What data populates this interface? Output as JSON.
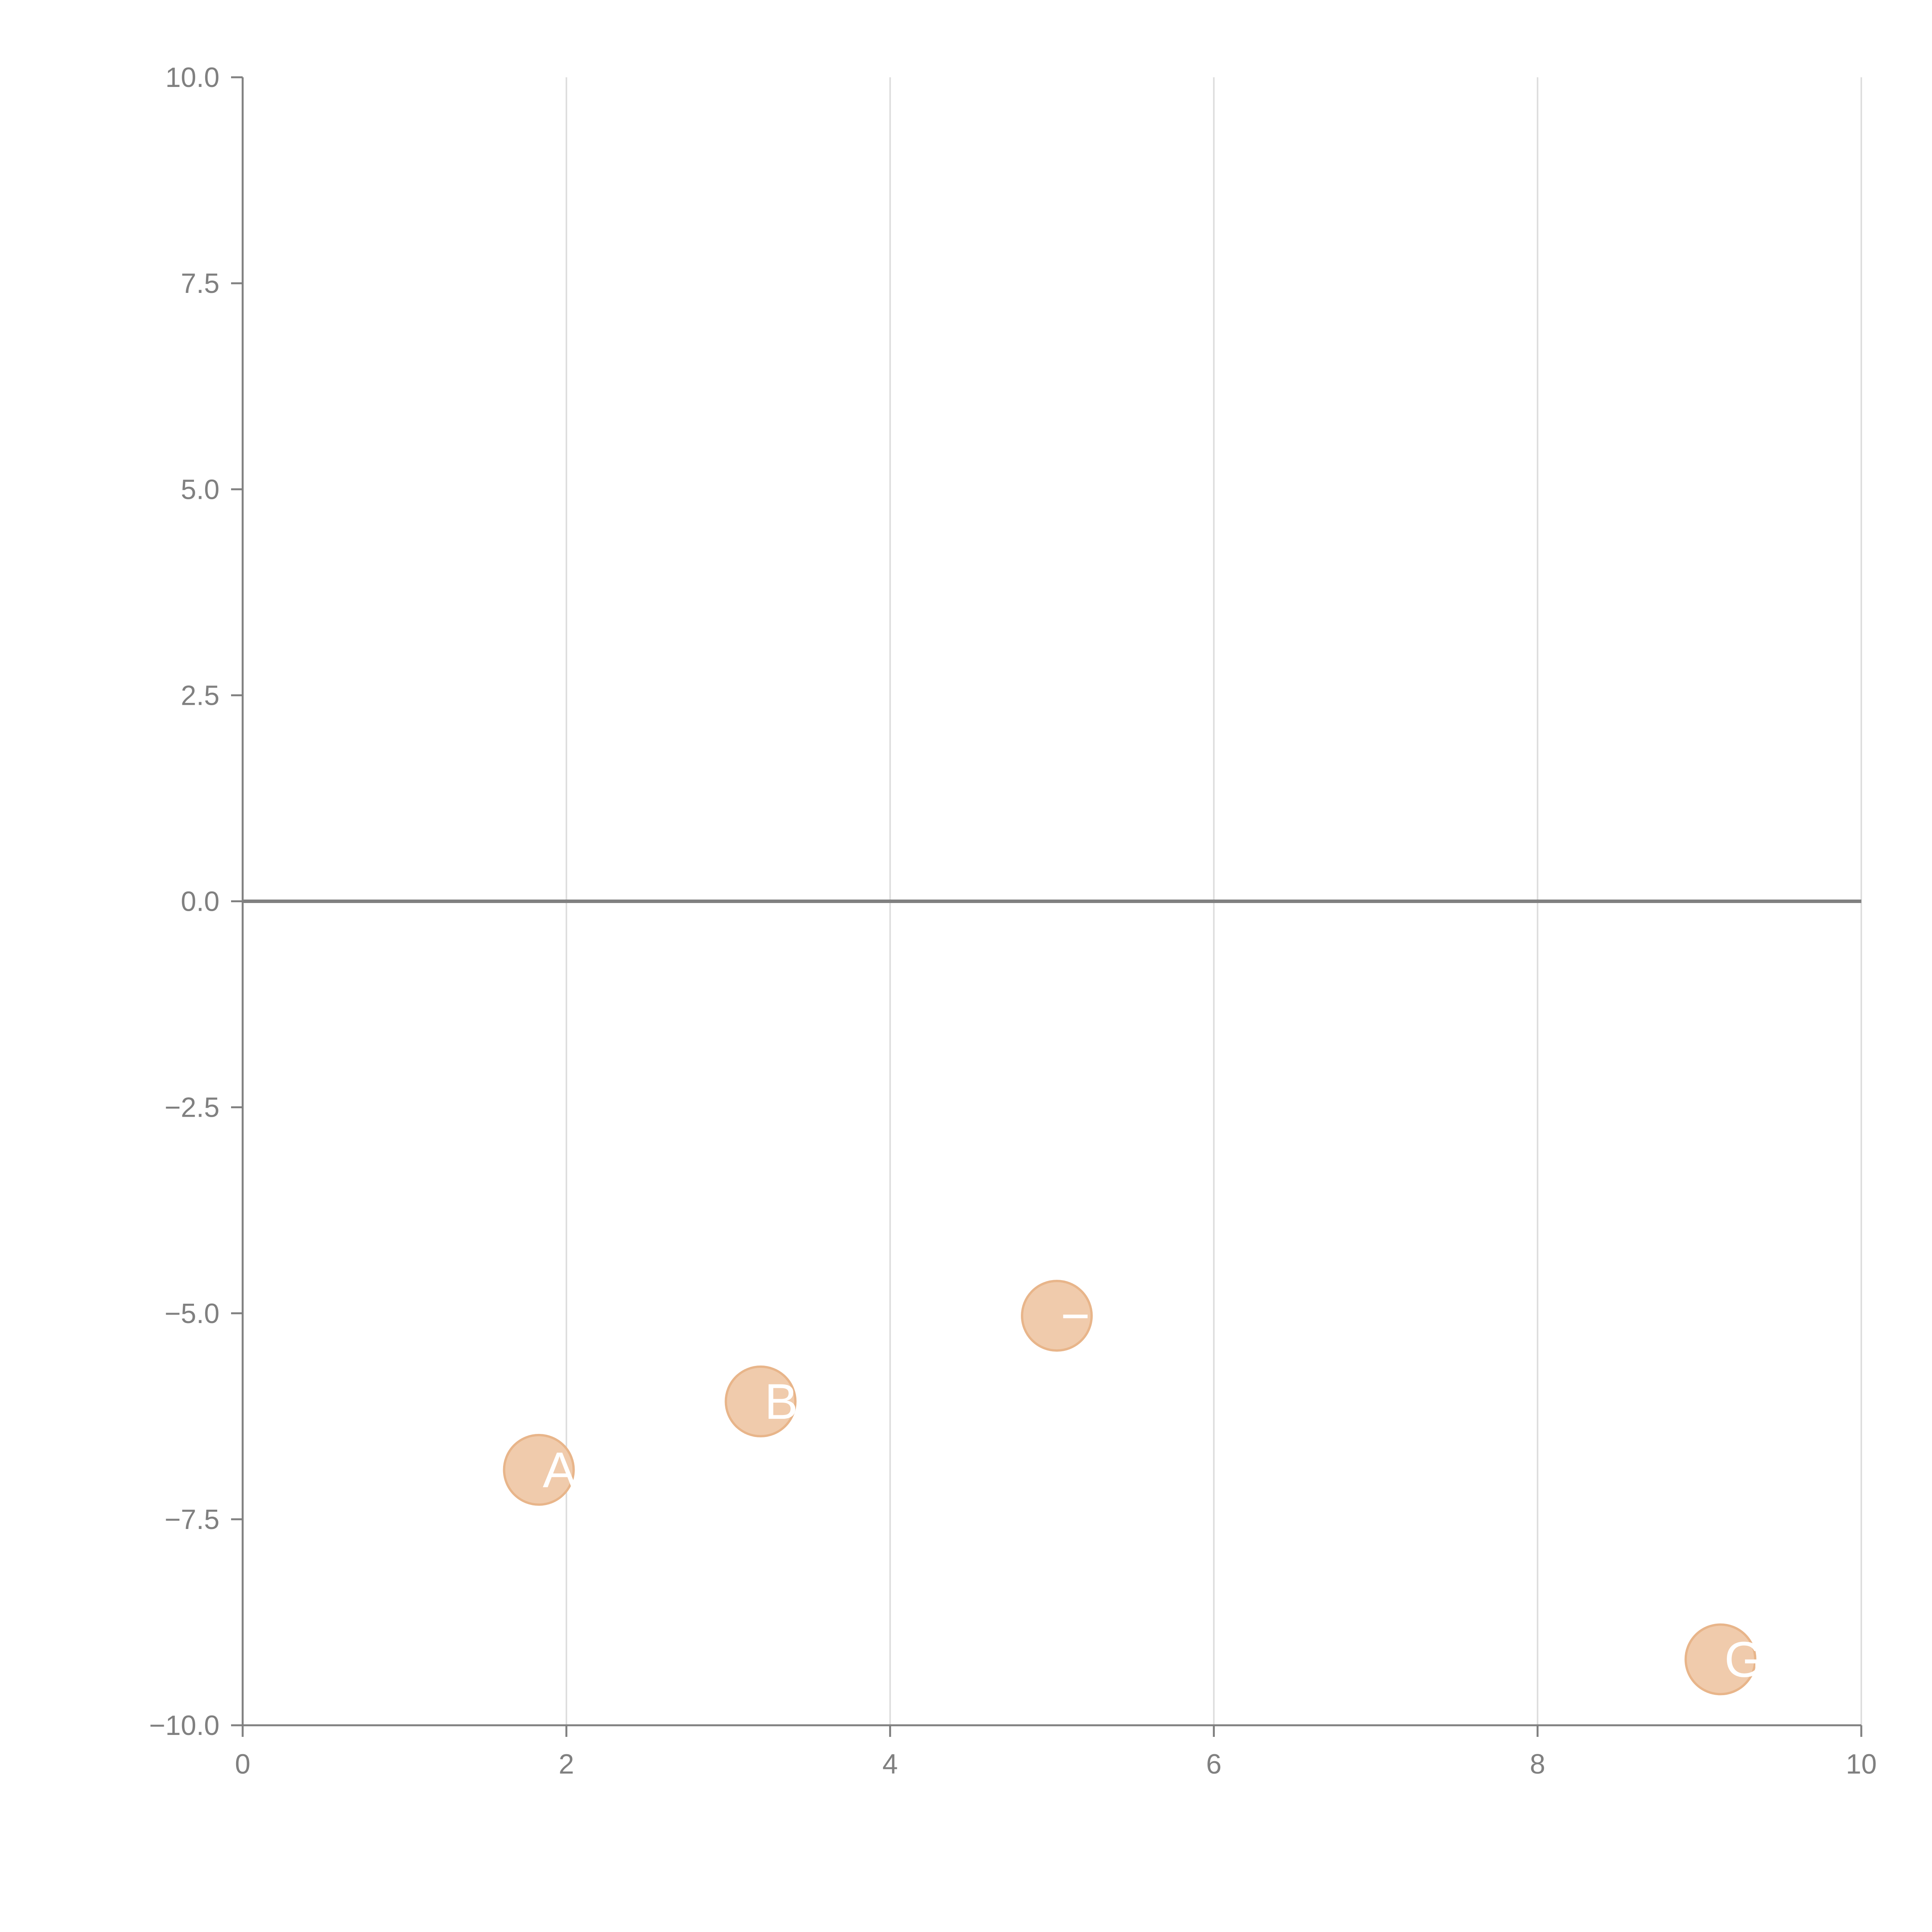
{
  "colors": {
    "background": "#ffffff",
    "axis": "#808080",
    "grid": "#dddddd",
    "zero_line": "#808080",
    "point_fill": "#f0cbac",
    "point_stroke": "#e8b58a",
    "point_label": "#ffffff"
  },
  "chart_data": {
    "type": "scatter",
    "title": "",
    "xlabel": "",
    "ylabel": "",
    "xlim": [
      0,
      10
    ],
    "ylim": [
      -10,
      10
    ],
    "x_ticks": [
      0,
      2,
      4,
      6,
      8,
      10
    ],
    "x_tick_labels": [
      "0",
      "2",
      "4",
      "6",
      "8",
      "10"
    ],
    "y_ticks": [
      10,
      7.5,
      5,
      2.5,
      0,
      -2.5,
      -5,
      -7.5,
      -10
    ],
    "y_tick_labels": [
      "10.0",
      "7.5",
      "5.0",
      "2.5",
      "0.0",
      "−2.5",
      "−5.0",
      "−7.5",
      "−10.0"
    ],
    "grid": "vertical",
    "zero_line": true,
    "legend": "none",
    "points": [
      {
        "x": 1.83,
        "y": -6.9,
        "label": "A"
      },
      {
        "x": 3.2,
        "y": -6.07,
        "label": "B"
      },
      {
        "x": 5.03,
        "y": -5.03,
        "label": "−E"
      },
      {
        "x": 9.13,
        "y": -9.2,
        "label": "GA"
      }
    ]
  }
}
